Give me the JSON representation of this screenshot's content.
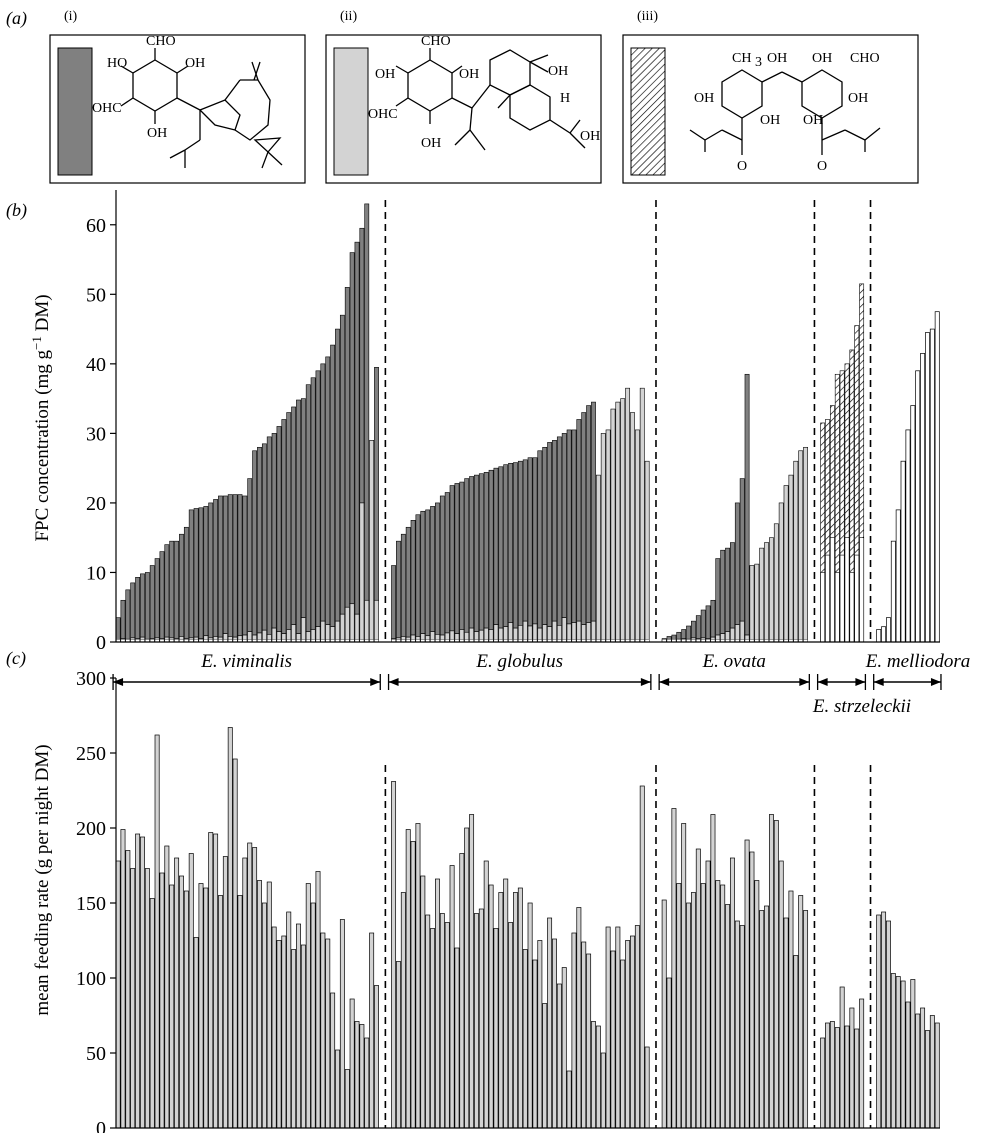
{
  "panel_labels": {
    "a": "(a)",
    "b": "(b)",
    "c": "(c)"
  },
  "structures": [
    {
      "roman": "(i)",
      "swatch": "dark-grey-fill",
      "atoms": [
        "CHO",
        "HO",
        "OH",
        "OHC",
        "OH"
      ]
    },
    {
      "roman": "(ii)",
      "swatch": "light-grey-fill",
      "atoms": [
        "CHO",
        "OH",
        "OH",
        "OHC",
        "OH",
        "OH",
        "H",
        "OH"
      ]
    },
    {
      "roman": "(iii)",
      "swatch": "hatched-fill",
      "atoms": [
        "CH",
        "3",
        "OH",
        "OH",
        "CHO",
        "OH",
        "OH",
        "OH",
        "OH",
        "O",
        "O"
      ]
    }
  ],
  "colors": {
    "fpc_i": "#808080",
    "fpc_ii": "#d3d3d3",
    "feeding": "#d3d3d3",
    "edge": "#000000"
  },
  "species_names": [
    "E. viminalis",
    "E. globulus",
    "E. ovata",
    "E. strzeleckii",
    "E. melliodora"
  ],
  "chart_data": [
    {
      "id": "b",
      "type": "bar",
      "stacked": true,
      "ylabel_main": "FPC concentration (mg g",
      "ylabel_sup": "−1",
      "ylabel_end": " DM)",
      "ylim": [
        0,
        65
      ],
      "yticks": [
        0,
        10,
        20,
        30,
        40,
        50,
        60
      ],
      "groups": [
        {
          "species": "E. viminalis",
          "n": 54
        },
        {
          "species": "E. globulus",
          "n": 53
        },
        {
          "species": "E. ovata",
          "n": 30
        },
        {
          "species": "E. strzeleckii",
          "n": 9
        },
        {
          "species": "E. melliodora",
          "n": 13
        }
      ],
      "series_legend": [
        "(i)",
        "(ii)",
        "(iii)"
      ],
      "totals": {
        "E. viminalis": [
          3.5,
          6,
          7.5,
          8.5,
          9.3,
          9.8,
          10,
          11,
          12,
          13,
          14,
          14.5,
          14.5,
          15.5,
          16.5,
          19,
          19.2,
          19.3,
          19.5,
          20,
          20.5,
          21,
          21,
          21.2,
          21.2,
          21.2,
          21,
          23.5,
          27.5,
          28,
          28.5,
          29.5,
          30,
          31,
          32,
          33,
          33.8,
          34.8,
          35,
          37,
          38,
          39,
          40,
          41,
          42.7,
          45,
          47,
          51,
          56,
          57.5,
          59.5,
          63,
          29,
          39.5
        ],
        "E. globulus": [
          11,
          14.5,
          15.5,
          16.5,
          17.5,
          18.3,
          18.8,
          19,
          19.5,
          20,
          21,
          21.5,
          22.5,
          22.8,
          23,
          23.5,
          23.8,
          24,
          24.2,
          24.4,
          24.7,
          25,
          25.2,
          25.5,
          25.7,
          25.8,
          26,
          26.2,
          26.5,
          26.5,
          27.5,
          28,
          28.7,
          29,
          29.5,
          30,
          30.5,
          30.5,
          32,
          33,
          34,
          34.5,
          24,
          30,
          30.5,
          33.5,
          34.5,
          35,
          36.5,
          33,
          30.5,
          36.5,
          26
        ],
        "E. ovata": [
          0.5,
          0.8,
          1,
          1.4,
          1.8,
          2.3,
          3,
          3.8,
          4.6,
          5.2,
          6,
          12,
          13.2,
          13.5,
          14.3,
          20,
          23.5,
          38.5,
          11,
          11.2,
          13.5,
          14.3,
          15,
          17,
          20,
          22.5,
          24,
          26,
          27.5,
          28
        ],
        "E. strzeleckii": [
          31.5,
          32,
          34,
          38.5,
          39,
          40,
          42,
          45.5,
          51.5
        ],
        "E. melliodora": [
          1.8,
          2.2,
          3.5,
          14.5,
          19,
          26,
          30.5,
          34,
          39,
          41.5,
          44.5,
          45,
          47.5
        ]
      },
      "fpc_ii_portion": {
        "E. viminalis": [
          0.3,
          0.5,
          0.4,
          0.6,
          0.5,
          0.7,
          0.4,
          0.5,
          0.6,
          0.5,
          0.7,
          0.6,
          0.5,
          0.8,
          0.5,
          0.6,
          0.7,
          0.5,
          0.9,
          0.6,
          0.8,
          0.7,
          1.2,
          0.8,
          0.7,
          0.9,
          1.0,
          1.5,
          1.0,
          1.3,
          1.7,
          1.1,
          2.0,
          1.5,
          1.2,
          1.8,
          2.5,
          1.2,
          3.5,
          1.5,
          1.8,
          2.2,
          3.0,
          2.5,
          2.2,
          3.0,
          4.0,
          5.0,
          5.5,
          4.0,
          20,
          6.0,
          29,
          6.0
        ],
        "E. globulus": [
          0.5,
          0.6,
          0.8,
          0.7,
          1.0,
          0.8,
          1.2,
          0.9,
          1.5,
          1.1,
          1.0,
          1.3,
          1.6,
          1.2,
          1.8,
          1.4,
          2.0,
          1.5,
          1.7,
          2.0,
          1.8,
          2.5,
          2.0,
          2.2,
          2.8,
          2.0,
          2.4,
          3.0,
          2.3,
          2.6,
          2.0,
          2.5,
          2.2,
          3.0,
          2.4,
          3.5,
          2.6,
          2.8,
          3.0,
          2.5,
          2.8,
          3.0,
          24,
          30,
          30.5,
          33.5,
          34.5,
          35,
          36.5,
          33,
          30.5,
          36.5,
          26
        ],
        "E. ovata": [
          0.2,
          0.3,
          0.3,
          0.4,
          0.5,
          0.4,
          0.6,
          0.5,
          0.6,
          0.5,
          0.7,
          1.0,
          1.2,
          1.5,
          2.0,
          2.5,
          3.0,
          1.0,
          11,
          11.2,
          13.5,
          14.3,
          15,
          17,
          20,
          22.5,
          24,
          26,
          27.5,
          28
        ],
        "E. strzeleckii": [
          0,
          0,
          0,
          0,
          0,
          0,
          0,
          0,
          0
        ],
        "E. melliodora": [
          1.8,
          2.2,
          3.5,
          14.5,
          19,
          26,
          30.5,
          34,
          39,
          41.5,
          44.5,
          45,
          47.5
        ]
      }
    },
    {
      "id": "c",
      "type": "bar",
      "ylabel": "mean feeding rate (g per night DM)",
      "ylim": [
        0,
        300
      ],
      "yticks": [
        0,
        50,
        100,
        150,
        200,
        250,
        300
      ],
      "groups": [
        {
          "species": "E. viminalis",
          "n": 54
        },
        {
          "species": "E. globulus",
          "n": 53
        },
        {
          "species": "E. ovata",
          "n": 30
        },
        {
          "species": "E. strzeleckii",
          "n": 9
        },
        {
          "species": "E. melliodora",
          "n": 13
        }
      ],
      "values": {
        "E. viminalis": [
          178,
          199,
          185,
          173,
          196,
          194,
          173,
          153,
          262,
          170,
          188,
          162,
          180,
          168,
          158,
          183,
          127,
          163,
          160,
          197,
          196,
          155,
          181,
          267,
          246,
          155,
          180,
          190,
          187,
          165,
          150,
          164,
          134,
          125,
          128,
          144,
          119,
          136,
          122,
          163,
          150,
          171,
          130,
          126,
          90,
          52,
          139,
          39,
          86,
          71,
          69,
          60,
          130,
          95
        ],
        "E. globulus": [
          231,
          111,
          157,
          199,
          191,
          203,
          168,
          142,
          133,
          166,
          143,
          137,
          175,
          120,
          183,
          200,
          209,
          143,
          146,
          178,
          162,
          133,
          157,
          166,
          137,
          157,
          160,
          119,
          150,
          112,
          125,
          83,
          140,
          126,
          96,
          107,
          38,
          130,
          147,
          124,
          116,
          71,
          68,
          50,
          134,
          118,
          134,
          112,
          125,
          128,
          135,
          228,
          54
        ],
        "E. ovata": [
          152,
          100,
          213,
          163,
          203,
          150,
          157,
          186,
          163,
          178,
          209,
          165,
          162,
          149,
          180,
          138,
          135,
          192,
          184,
          165,
          145,
          148,
          209,
          205,
          178,
          140,
          158,
          115,
          155,
          145
        ],
        "E. strzeleckii": [
          60,
          70,
          71,
          67,
          94,
          68,
          80,
          66,
          86
        ],
        "E. melliodora": [
          142,
          144,
          138,
          103,
          101,
          98,
          84,
          99,
          76,
          80,
          65,
          75,
          70
        ]
      }
    }
  ]
}
